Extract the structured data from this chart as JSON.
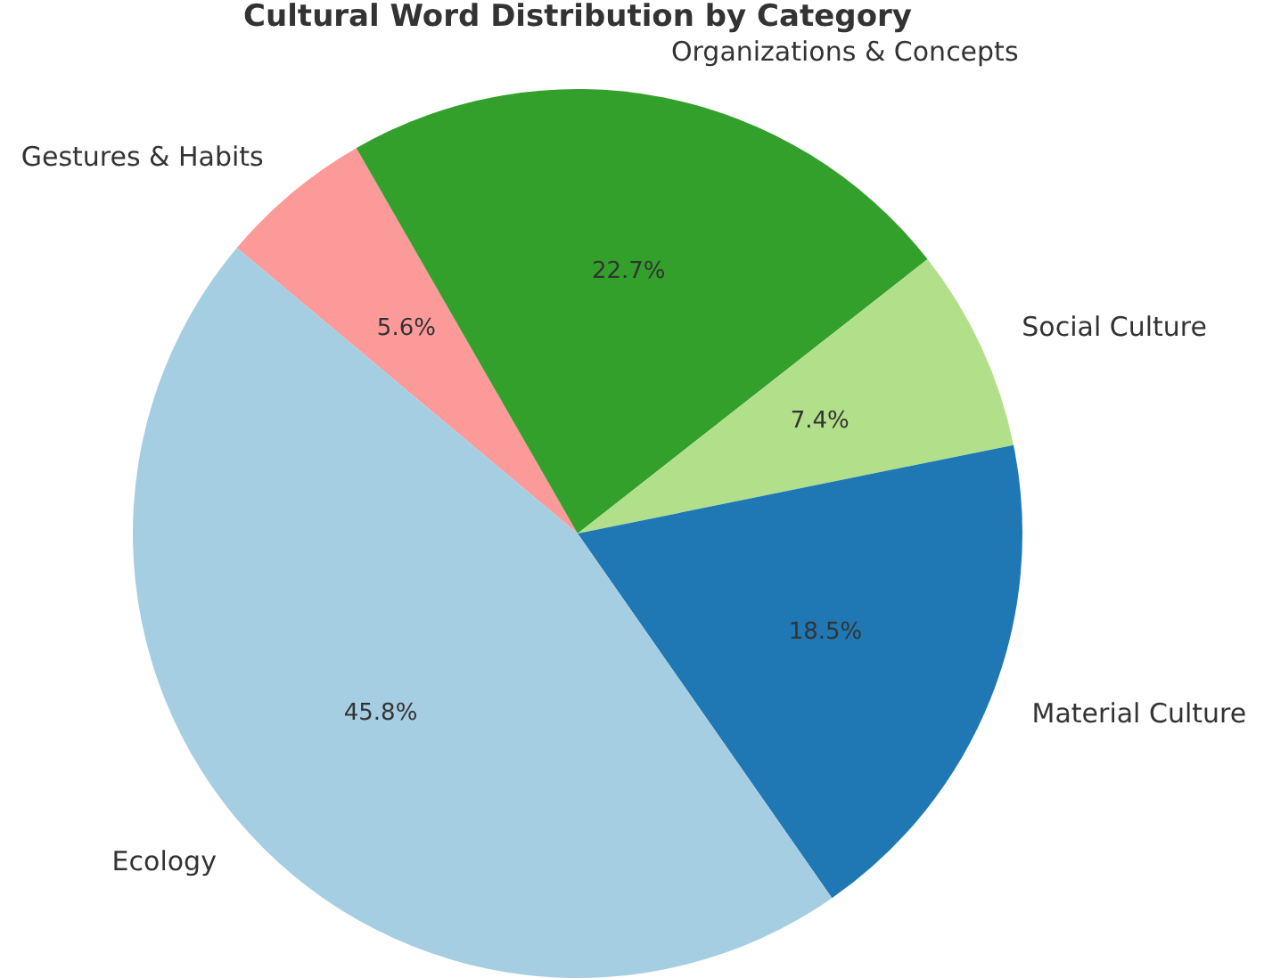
{
  "chart_data": {
    "type": "pie",
    "title": "Cultural Word Distribution by Category",
    "categories": [
      "Ecology",
      "Material Culture",
      "Social Culture",
      "Organizations & Concepts",
      "Gestures & Habits"
    ],
    "values": [
      45.8,
      18.5,
      7.4,
      22.7,
      5.6
    ],
    "colors": [
      "#a6cee3",
      "#1f78b4",
      "#b2df8a",
      "#33a02c",
      "#fb9a99"
    ],
    "value_labels": [
      "45.8%",
      "18.5%",
      "7.4%",
      "22.7%",
      "5.6%"
    ],
    "legend": false
  }
}
